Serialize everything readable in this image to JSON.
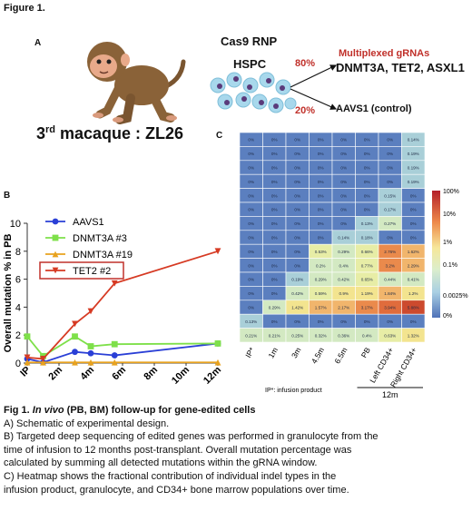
{
  "figure_title": "Figure 1.",
  "panel_a": {
    "letter": "A",
    "monkey_label_prefix": "3",
    "monkey_label_sup": "rd",
    "monkey_label_suffix": " macaque : ZL26",
    "cas9": "Cas9 RNP",
    "hspc": "HSPC",
    "pct_edited": "80%",
    "pct_control": "20%",
    "multiplex_label": "Multiplexed gRNAs",
    "genes": "DNMT3A, TET2, ASXL1",
    "control_label": "AAVS1 (control)"
  },
  "panel_b": {
    "letter": "B"
  },
  "panel_c": {
    "letter": "C",
    "footnote": "IP*: infusion product",
    "group_label": "12m",
    "legend_labels": [
      "100%",
      "10%",
      "1%",
      "0.1%",
      "0.0025%",
      "0%"
    ]
  },
  "colors": {
    "red": "#c0302a",
    "aavs1": "#2a3fd6",
    "dnmt3a3": "#7ee04a",
    "dnmt3a19": "#e8a21e",
    "tet2": "#d63a23"
  },
  "chart_data": [
    {
      "type": "line",
      "ylabel": "Overall mutation % in PB",
      "x": [
        "IP",
        "2m",
        "4m",
        "6m",
        "8m",
        "10m",
        "12m"
      ],
      "ylim": [
        0,
        10
      ],
      "yticks": [
        0,
        2,
        4,
        6,
        8,
        10
      ],
      "series": [
        {
          "name": "AAVS1",
          "color": "#2a3fd6",
          "marker": "circle",
          "points": [
            [
              0,
              0.3
            ],
            [
              0.5,
              0.05
            ],
            [
              1.5,
              0.8
            ],
            [
              2,
              0.7
            ],
            [
              2.75,
              0.55
            ],
            [
              6,
              1.4
            ]
          ]
        },
        {
          "name": "DNMT3A #3",
          "color": "#7ee04a",
          "marker": "square",
          "points": [
            [
              0,
              1.9
            ],
            [
              0.5,
              0.5
            ],
            [
              1.5,
              1.9
            ],
            [
              2,
              1.2
            ],
            [
              2.75,
              1.35
            ],
            [
              6,
              1.4
            ]
          ]
        },
        {
          "name": "DNMT3A #19",
          "color": "#e8a21e",
          "marker": "triangle",
          "points": [
            [
              0,
              0.05
            ],
            [
              0.5,
              0.05
            ],
            [
              1.5,
              0.05
            ],
            [
              2,
              0.05
            ],
            [
              2.75,
              0.05
            ],
            [
              6,
              0.05
            ]
          ]
        },
        {
          "name": "TET2 #2",
          "color": "#d63a23",
          "marker": "triangle-down",
          "points": [
            [
              0,
              0.4
            ],
            [
              0.5,
              0.3
            ],
            [
              1.5,
              2.8
            ],
            [
              2,
              3.7
            ],
            [
              2.75,
              5.7
            ],
            [
              6,
              8
            ]
          ]
        }
      ],
      "legend_highlight": "TET2 #2"
    },
    {
      "type": "heatmap",
      "columns": [
        "IP*",
        "1m",
        "3m",
        "4.5m",
        "6.5m",
        "PB",
        "Left CD34+",
        "Right CD34+"
      ],
      "cells": [
        [
          "0%",
          "0%",
          "0%",
          "0%",
          "0%",
          "0%",
          "0%",
          "0.14%"
        ],
        [
          "0%",
          "0%",
          "0%",
          "0%",
          "0%",
          "0%",
          "0%",
          "0.19%"
        ],
        [
          "0%",
          "0%",
          "0%",
          "0%",
          "0%",
          "0%",
          "0%",
          "0.19%"
        ],
        [
          "0%",
          "0%",
          "0%",
          "0%",
          "0%",
          "0%",
          "0%",
          "0.19%"
        ],
        [
          "0%",
          "0%",
          "0%",
          "0%",
          "0%",
          "0%",
          "0.15%",
          "0%"
        ],
        [
          "0%",
          "0%",
          "0%",
          "0%",
          "0%",
          "0%",
          "0.17%",
          "0%"
        ],
        [
          "0%",
          "0%",
          "0%",
          "0%",
          "0%",
          "0.13%",
          "0.27%",
          "0%"
        ],
        [
          "0%",
          "0%",
          "0%",
          "0%",
          "0.14%",
          "0.18%",
          "0%",
          "0%"
        ],
        [
          "0%",
          "0%",
          "0%",
          "0.53%",
          "0.29%",
          "0.66%",
          "2.76%",
          "1.62%"
        ],
        [
          "0%",
          "0%",
          "0%",
          "0.2%",
          "0.4%",
          "0.77%",
          "3.2%",
          "2.29%"
        ],
        [
          "0%",
          "0%",
          "0.19%",
          "0.29%",
          "0.42%",
          "0.65%",
          "0.44%",
          "0.41%"
        ],
        [
          "0%",
          "0%",
          "0.42%",
          "0.59%",
          "0.9%",
          "1.19%",
          "1.84%",
          "1.2%"
        ],
        [
          "0%",
          "0.29%",
          "1.42%",
          "1.57%",
          "2.17%",
          "3.17%",
          "3.94%",
          "5.88%"
        ],
        [
          "0.13%",
          "0%",
          "0%",
          "0%",
          "0%",
          "0%",
          "0%",
          "0%"
        ],
        [
          "0.21%",
          "0.21%",
          "0.25%",
          "0.32%",
          "0.36%",
          "0.4%",
          "0.63%",
          "1.32%"
        ]
      ]
    }
  ],
  "caption": {
    "title_prefix": "Fig 1. ",
    "title_italic": "In vivo",
    "title_rest": " (PB, BM) follow-up for gene-edited cells",
    "lines": [
      "A) Schematic of experimental design.",
      "B) Targeted deep sequencing of edited genes was performed in granulocyte from the",
      "time of infusion  to 12 months post-transplant. Overall mutation percentage was",
      "calculated by summing all detected mutations within the gRNA window.",
      "C) Heatmap shows the fractional contribution of individual indel types in the",
      "infusion  product, granulocyte, and CD34+ bone marrow populations  over time."
    ]
  }
}
